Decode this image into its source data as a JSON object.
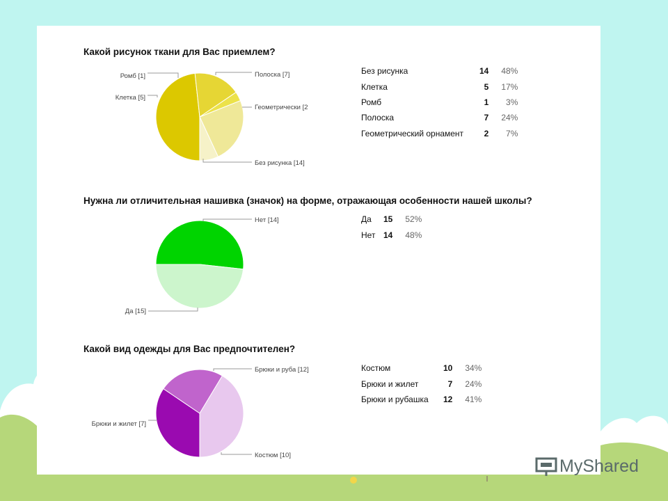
{
  "chart_data": [
    {
      "type": "pie",
      "title": "Какой рисунок ткани для Вас приемлем?",
      "slices": [
        {
          "name": "Без рисунка",
          "label": "Без рисунка [14]",
          "value": 14,
          "percent": "48%",
          "color": "#dcc800"
        },
        {
          "name": "Клетка",
          "label": "Клетка [5]",
          "value": 5,
          "percent": "17%",
          "color": "#e6d634"
        },
        {
          "name": "Ромб",
          "label": "Ромб [1]",
          "value": 1,
          "percent": "3%",
          "color": "#ece24a"
        },
        {
          "name": "Полоска",
          "label": "Полоска [7]",
          "value": 7,
          "percent": "24%",
          "color": "#efe898"
        },
        {
          "name": "Геометрический орнамент",
          "label": "Геометрически [2",
          "value": 2,
          "percent": "7%",
          "color": "#f6f2c8"
        }
      ]
    },
    {
      "type": "pie",
      "title": "Нужна ли отличительная нашивка (значок) на форме, отражающая особенности нашей школы?",
      "slices": [
        {
          "name": "Да",
          "label": "Да [15]",
          "value": 15,
          "percent": "52%",
          "color": "#00d400"
        },
        {
          "name": "Нет",
          "label": "Нет [14]",
          "value": 14,
          "percent": "48%",
          "color": "#ccf5cc"
        }
      ]
    },
    {
      "type": "pie",
      "title": "Какой вид одежды для Вас предпочтителен?",
      "slices": [
        {
          "name": "Костюм",
          "label": "Костюм [10]",
          "value": 10,
          "percent": "34%",
          "color": "#9a0ab0"
        },
        {
          "name": "Брюки и жилет",
          "label": "Брюки и жилет [7]",
          "value": 7,
          "percent": "24%",
          "color": "#c064cc"
        },
        {
          "name": "Брюки и рубашка",
          "label": "Брюки и руба [12]",
          "value": 12,
          "percent": "41%",
          "color": "#e8c8ee"
        }
      ]
    }
  ],
  "watermark": "MyShared"
}
